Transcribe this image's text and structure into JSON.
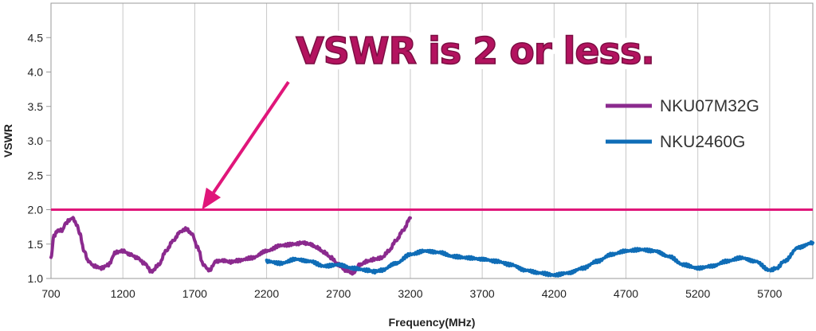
{
  "chart_data": {
    "type": "line",
    "title": "",
    "xlabel": "Frequency(MHz)",
    "ylabel": "VSWR",
    "xlim": [
      700,
      6000
    ],
    "ylim": [
      1.0,
      5.0
    ],
    "x_ticks": [
      700,
      1200,
      1700,
      2200,
      2700,
      3200,
      3700,
      4200,
      4700,
      5200,
      5700
    ],
    "x_tick_labels": [
      "700",
      "1200",
      "1700",
      "2200",
      "2700",
      "3200",
      "3700",
      "4200",
      "4700",
      "5200",
      "5700"
    ],
    "y_ticks": [
      1.0,
      1.5,
      2.0,
      2.5,
      3.0,
      3.5,
      4.0,
      4.5
    ],
    "y_tick_labels": [
      "1.0",
      "1.5",
      "2.0",
      "2.5",
      "3.0",
      "3.5",
      "4.0",
      "4.5"
    ],
    "grid": "vertical",
    "legend_position": "right",
    "reference_line": {
      "y": 2.0,
      "color": "#e0167a"
    },
    "annotation": {
      "text": "VSWR is 2 or less.",
      "points_to": {
        "x": 1750,
        "y": 2.0
      }
    },
    "series": [
      {
        "name": "NKU07M32G",
        "color": "#8b2a8e",
        "x": [
          700,
          720,
          750,
          780,
          800,
          830,
          850,
          880,
          900,
          930,
          960,
          1000,
          1050,
          1100,
          1150,
          1200,
          1250,
          1300,
          1350,
          1400,
          1450,
          1500,
          1550,
          1600,
          1640,
          1680,
          1720,
          1760,
          1800,
          1850,
          1900,
          1950,
          2000,
          2100,
          2200,
          2300,
          2400,
          2450,
          2500,
          2550,
          2600,
          2650,
          2700,
          2750,
          2800,
          2850,
          2900,
          2950,
          3000,
          3050,
          3100,
          3150,
          3200
        ],
        "y": [
          1.3,
          1.62,
          1.7,
          1.7,
          1.8,
          1.85,
          1.88,
          1.78,
          1.65,
          1.4,
          1.25,
          1.18,
          1.15,
          1.2,
          1.38,
          1.4,
          1.35,
          1.3,
          1.22,
          1.1,
          1.2,
          1.4,
          1.55,
          1.68,
          1.72,
          1.65,
          1.45,
          1.2,
          1.12,
          1.25,
          1.26,
          1.24,
          1.26,
          1.3,
          1.4,
          1.48,
          1.5,
          1.52,
          1.5,
          1.45,
          1.38,
          1.3,
          1.2,
          1.12,
          1.08,
          1.2,
          1.25,
          1.28,
          1.3,
          1.4,
          1.55,
          1.7,
          1.88
        ]
      },
      {
        "name": "NKU2460G",
        "color": "#0f6db7",
        "x": [
          2200,
          2300,
          2400,
          2500,
          2600,
          2700,
          2800,
          2900,
          2950,
          3000,
          3100,
          3200,
          3300,
          3400,
          3500,
          3600,
          3700,
          3800,
          3900,
          4000,
          4100,
          4200,
          4300,
          4400,
          4500,
          4600,
          4700,
          4800,
          4900,
          5000,
          5100,
          5200,
          5300,
          5400,
          5500,
          5600,
          5700,
          5750,
          5800,
          5900,
          6000
        ],
        "y": [
          1.25,
          1.22,
          1.28,
          1.25,
          1.18,
          1.2,
          1.15,
          1.12,
          1.1,
          1.12,
          1.22,
          1.35,
          1.4,
          1.38,
          1.32,
          1.3,
          1.28,
          1.25,
          1.2,
          1.12,
          1.08,
          1.05,
          1.08,
          1.15,
          1.25,
          1.35,
          1.4,
          1.42,
          1.4,
          1.32,
          1.2,
          1.15,
          1.18,
          1.25,
          1.3,
          1.25,
          1.12,
          1.15,
          1.25,
          1.45,
          1.52
        ]
      }
    ]
  }
}
